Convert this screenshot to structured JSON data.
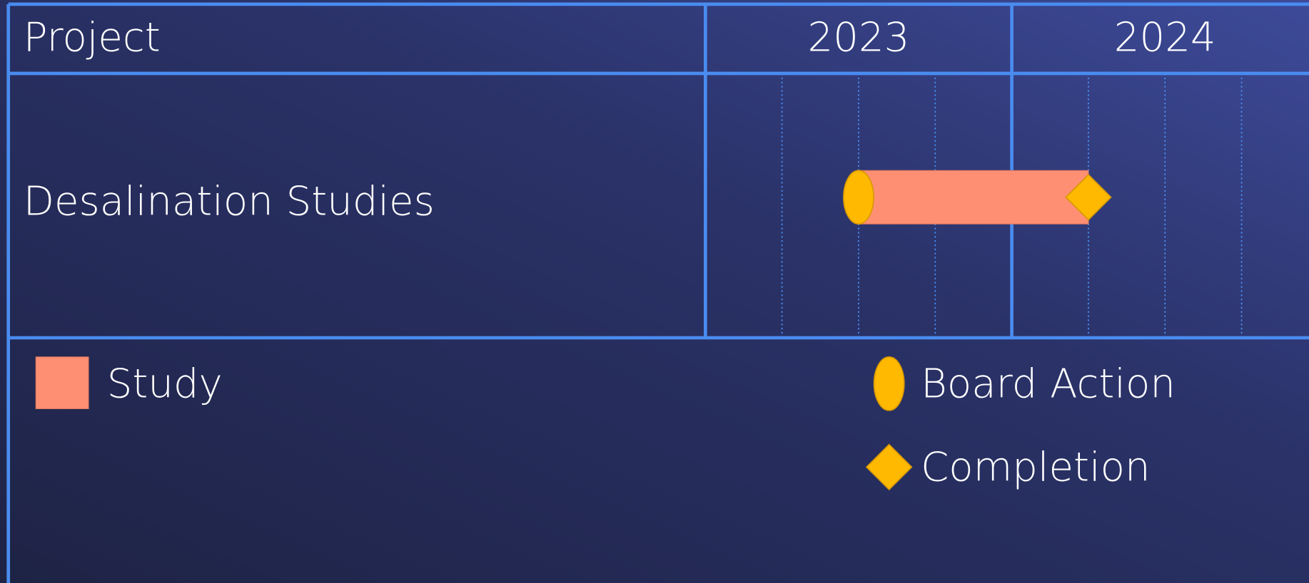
{
  "chart_data": {
    "type": "gantt",
    "header": "Project",
    "xlim": [
      2023,
      2025
    ],
    "xticks": [
      2023,
      2024,
      2025
    ],
    "minor_xticks": [
      2023.25,
      2023.5,
      2023.75,
      2024.25,
      2024.5,
      2024.75
    ],
    "years": [
      2023,
      2024
    ],
    "bar_name": "Study",
    "bar_color": "#ff8f73",
    "tasks": [
      {
        "name": "Desalination Studies",
        "start": 2023.5,
        "end": 2024.25
      }
    ],
    "milestones": [
      {
        "name": "Board Action",
        "x": 2023.5,
        "shape": "ellipse",
        "color": "#ffb900"
      },
      {
        "name": "Completion",
        "x": 2024.25,
        "shape": "diamond",
        "color": "#ffb900"
      }
    ]
  }
}
